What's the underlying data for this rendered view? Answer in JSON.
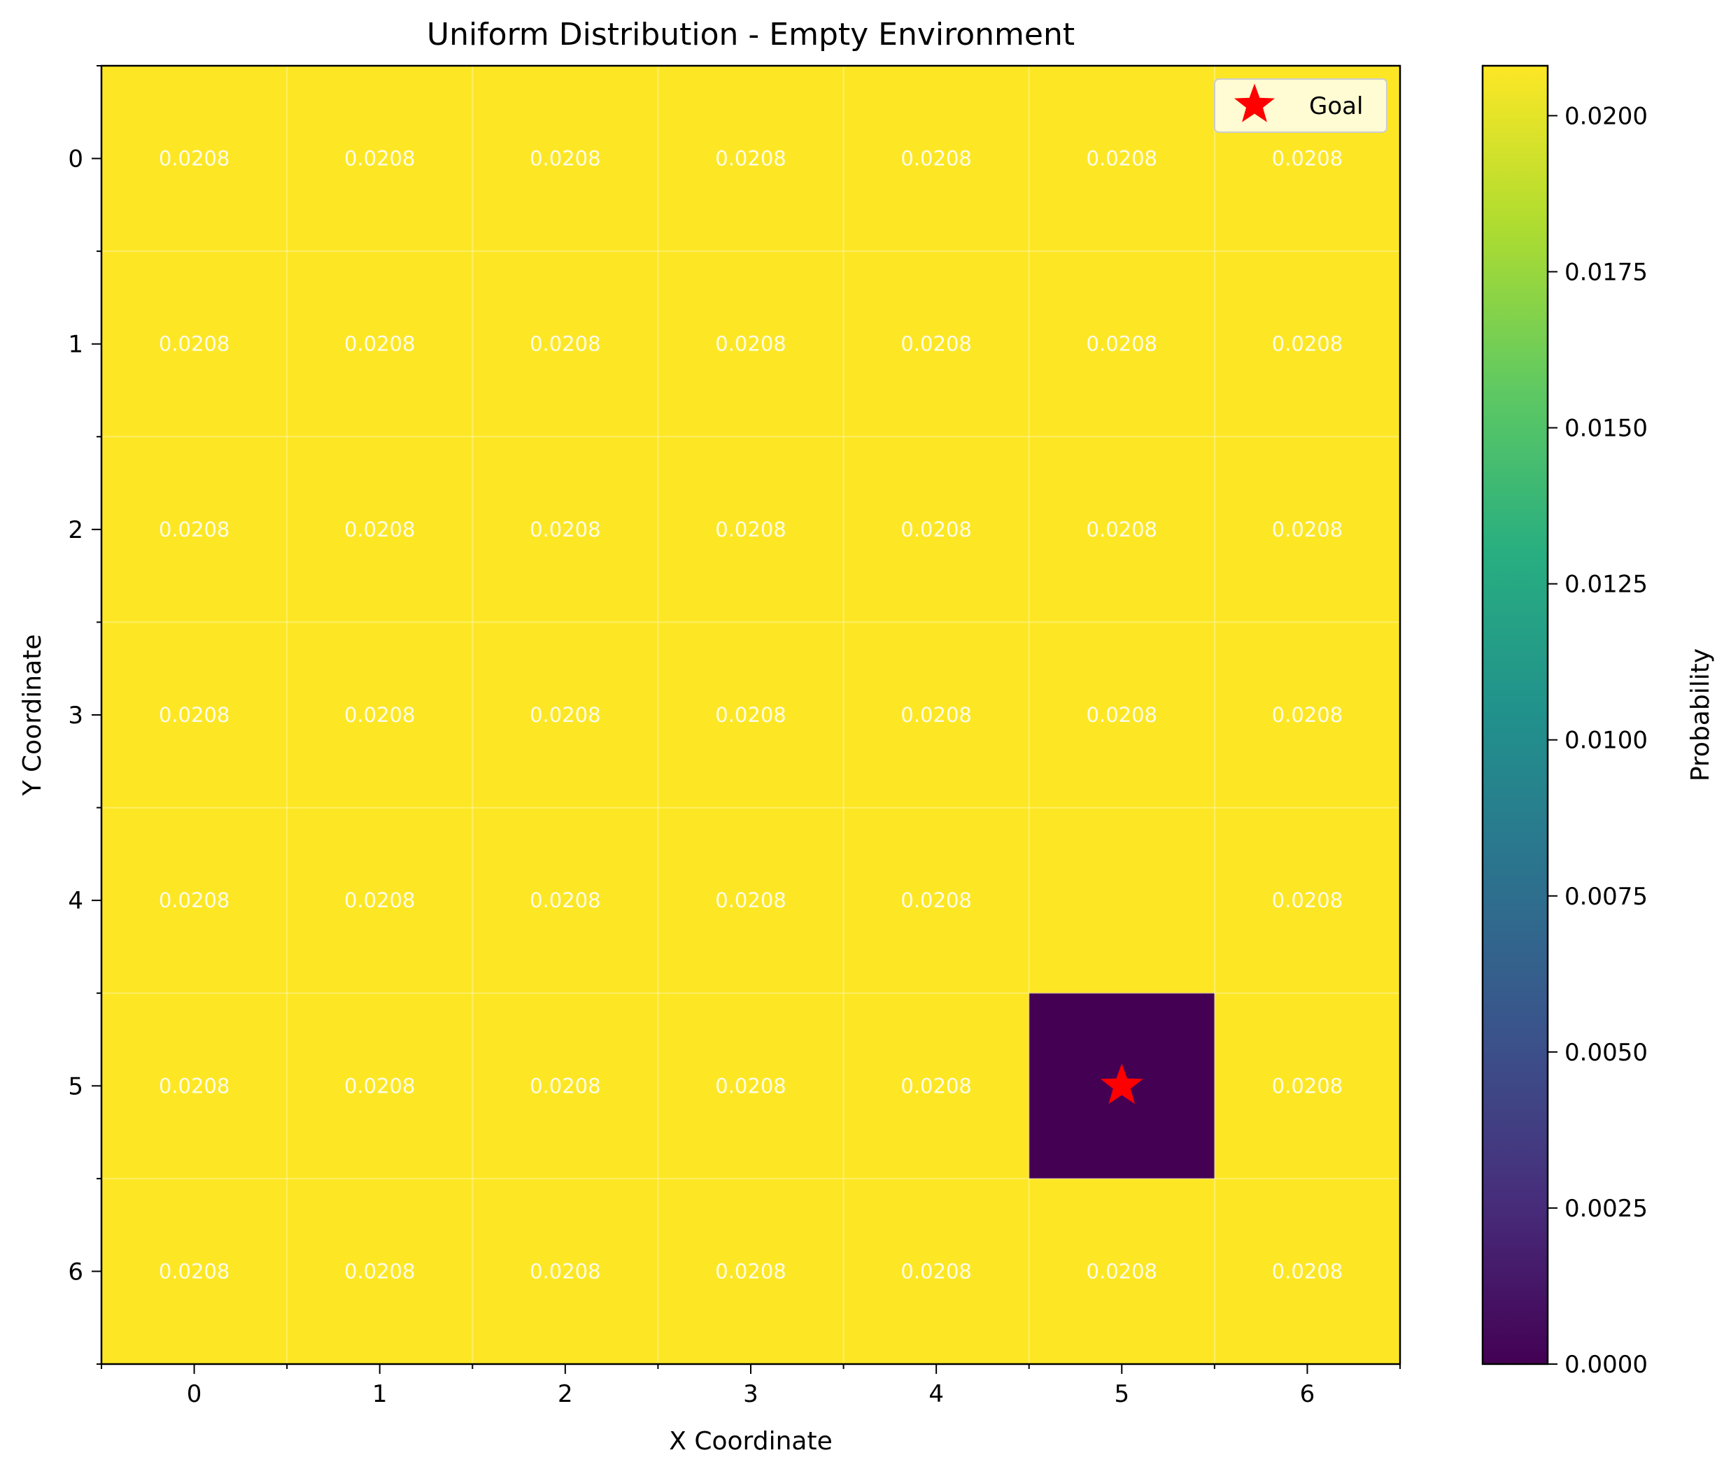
{
  "chart_data": {
    "type": "heatmap",
    "title": "Uniform Distribution - Empty Environment",
    "xlabel": "X Coordinate",
    "ylabel": "Y Coordinate",
    "x_ticks": [
      "0",
      "1",
      "2",
      "3",
      "4",
      "5",
      "6"
    ],
    "y_ticks": [
      "0",
      "1",
      "2",
      "3",
      "4",
      "5",
      "6"
    ],
    "values": [
      [
        0.0208,
        0.0208,
        0.0208,
        0.0208,
        0.0208,
        0.0208,
        0.0208
      ],
      [
        0.0208,
        0.0208,
        0.0208,
        0.0208,
        0.0208,
        0.0208,
        0.0208
      ],
      [
        0.0208,
        0.0208,
        0.0208,
        0.0208,
        0.0208,
        0.0208,
        0.0208
      ],
      [
        0.0208,
        0.0208,
        0.0208,
        0.0208,
        0.0208,
        0.0208,
        0.0208
      ],
      [
        0.0208,
        0.0208,
        0.0208,
        0.0208,
        0.0208,
        0.0208,
        0.0208
      ],
      [
        0.0208,
        0.0208,
        0.0208,
        0.0208,
        0.0208,
        0.0,
        0.0208
      ],
      [
        0.0208,
        0.0208,
        0.0208,
        0.0208,
        0.0208,
        0.0208,
        0.0208
      ]
    ],
    "cell_labels": [
      [
        "0.0208",
        "0.0208",
        "0.0208",
        "0.0208",
        "0.0208",
        "0.0208",
        "0.0208"
      ],
      [
        "0.0208",
        "0.0208",
        "0.0208",
        "0.0208",
        "0.0208",
        "0.0208",
        "0.0208"
      ],
      [
        "0.0208",
        "0.0208",
        "0.0208",
        "0.0208",
        "0.0208",
        "0.0208",
        "0.0208"
      ],
      [
        "0.0208",
        "0.0208",
        "0.0208",
        "0.0208",
        "0.0208",
        "0.0208",
        "0.0208"
      ],
      [
        "0.0208",
        "0.0208",
        "0.0208",
        "0.0208",
        "0.0208",
        "",
        "0.0208"
      ],
      [
        "0.0208",
        "0.0208",
        "0.0208",
        "0.0208",
        "0.0208",
        "",
        "0.0208"
      ],
      [
        "0.0208",
        "0.0208",
        "0.0208",
        "0.0208",
        "0.0208",
        "0.0208",
        "0.0208"
      ]
    ],
    "goal": {
      "x": 5,
      "y": 5,
      "label": "Goal",
      "color": "#ff0000"
    },
    "legend_position": "top-right",
    "grid": true,
    "colorbar": {
      "label": "Probability",
      "range": [
        0.0,
        0.0208
      ],
      "colormap": "viridis",
      "ticks": [
        "0.0000",
        "0.0025",
        "0.0050",
        "0.0075",
        "0.0100",
        "0.0125",
        "0.0150",
        "0.0175",
        "0.0200"
      ],
      "tick_values": [
        0.0,
        0.0025,
        0.005,
        0.0075,
        0.01,
        0.0125,
        0.015,
        0.0175,
        0.02
      ]
    }
  }
}
